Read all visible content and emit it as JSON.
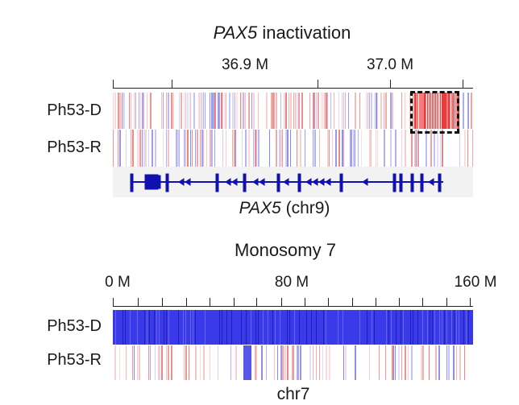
{
  "panel_top": {
    "title_gene": "PAX5",
    "title_rest": "inactivation",
    "ticks": [
      "36.9 M",
      "37.0 M"
    ],
    "rows": [
      "Ph53-D",
      "Ph53-R"
    ],
    "gene_label": "PAX5",
    "gene_chrom": "(chr9)",
    "colors": {
      "gain": "#e53935",
      "loss": "#3030e0",
      "gene": "#1010b0"
    }
  },
  "panel_bottom": {
    "title": "Monosomy 7",
    "ticks": [
      "0 M",
      "80 M",
      "160 M"
    ],
    "rows": [
      "Ph53-D",
      "Ph53-R"
    ],
    "xlabel": "chr7",
    "colors": {
      "loss": "#3535e6",
      "gain": "#e88"
    }
  }
}
